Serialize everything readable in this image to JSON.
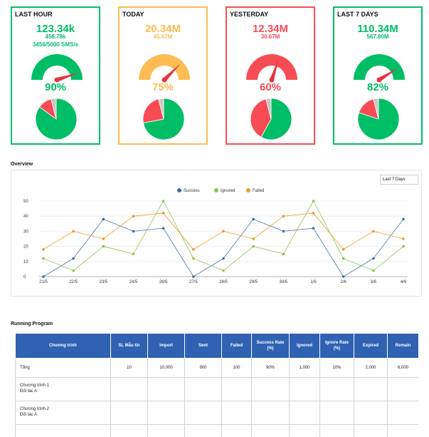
{
  "colors": {
    "green": "#00be66",
    "orange": "#ffbc52",
    "red": "#f74c56",
    "grey": "#c8c8c8",
    "header_blue": "#2f62b3"
  },
  "cards": [
    {
      "title": "LAST HOUR",
      "main": "123.34k",
      "sub": "456.78k",
      "rate": "3456/5000 SMS/s",
      "pct_label": "90%",
      "gauge_value": 0.9,
      "color": "#00be66",
      "pie": [
        {
          "value": 85,
          "color": "#00be66"
        },
        {
          "value": 11,
          "color": "#f74c56"
        },
        {
          "value": 4,
          "color": "#c8c8c8"
        }
      ]
    },
    {
      "title": "TODAY",
      "main": "20.34M",
      "sub": "45.67M",
      "rate": "",
      "pct_label": "75%",
      "gauge_value": 0.75,
      "color": "#ffbc52",
      "pie": [
        {
          "value": 72,
          "color": "#00be66"
        },
        {
          "value": 24,
          "color": "#f74c56"
        },
        {
          "value": 4,
          "color": "#c8c8c8"
        }
      ]
    },
    {
      "title": "YESTERDAY",
      "main": "12.34M",
      "sub": "30.67M",
      "rate": "",
      "pct_label": "60%",
      "gauge_value": 0.6,
      "color": "#f74c56",
      "pie": [
        {
          "value": 58,
          "color": "#00be66"
        },
        {
          "value": 38,
          "color": "#f74c56"
        },
        {
          "value": 4,
          "color": "#c8c8c8"
        }
      ]
    },
    {
      "title": "LAST 7 DAYS",
      "main": "110.34M",
      "sub": "567.80M",
      "rate": "",
      "pct_label": "82%",
      "gauge_value": 0.82,
      "color": "#00be66",
      "pie": [
        {
          "value": 80,
          "color": "#00be66"
        },
        {
          "value": 16,
          "color": "#f74c56"
        },
        {
          "value": 4,
          "color": "#c8c8c8"
        }
      ]
    }
  ],
  "overview": {
    "title": "Overview",
    "range_selected": "Last 7 Days"
  },
  "chart_data": {
    "type": "line",
    "categories": [
      "21/5",
      "22/5",
      "23/5",
      "24/5",
      "26/5",
      "27/5",
      "28/5",
      "29/5",
      "30/5",
      "1/6",
      "2/6",
      "3/6",
      "4/6"
    ],
    "ylim": [
      0,
      50
    ],
    "yticks": [
      0,
      10,
      20,
      30,
      40,
      50
    ],
    "legend_position": "top-center",
    "series": [
      {
        "name": "Success",
        "color": "#3d6ea8",
        "values": [
          0,
          12,
          38,
          30,
          32,
          0,
          12,
          38,
          30,
          32,
          0,
          12,
          38
        ]
      },
      {
        "name": "Ignored",
        "color": "#8cc34f",
        "values": [
          12,
          4,
          20,
          15,
          50,
          12,
          4,
          20,
          15,
          50,
          12,
          4,
          20
        ]
      },
      {
        "name": "Failed",
        "color": "#ec9a2c",
        "values": [
          18,
          30,
          25,
          40,
          42,
          18,
          30,
          25,
          40,
          42,
          18,
          30,
          25
        ]
      }
    ]
  },
  "running": {
    "title": "Running Program",
    "headers": [
      "Chương trình",
      "SL Mẫu tin",
      "Import",
      "Sent",
      "Failed",
      "Success Rate (%)",
      "Ignored",
      "Ignore Rate (%)",
      "Expired",
      "Remain"
    ],
    "total_row": [
      "Tổng",
      "10",
      "10,000",
      "900",
      "100",
      "90%",
      "1,000",
      "10%",
      "2,000",
      "6,000"
    ],
    "programs": [
      {
        "line1": "Chương trình 1",
        "line2": "Đối tác A"
      },
      {
        "line1": "Chương trình 2",
        "line2": "Đối tác A"
      }
    ]
  }
}
